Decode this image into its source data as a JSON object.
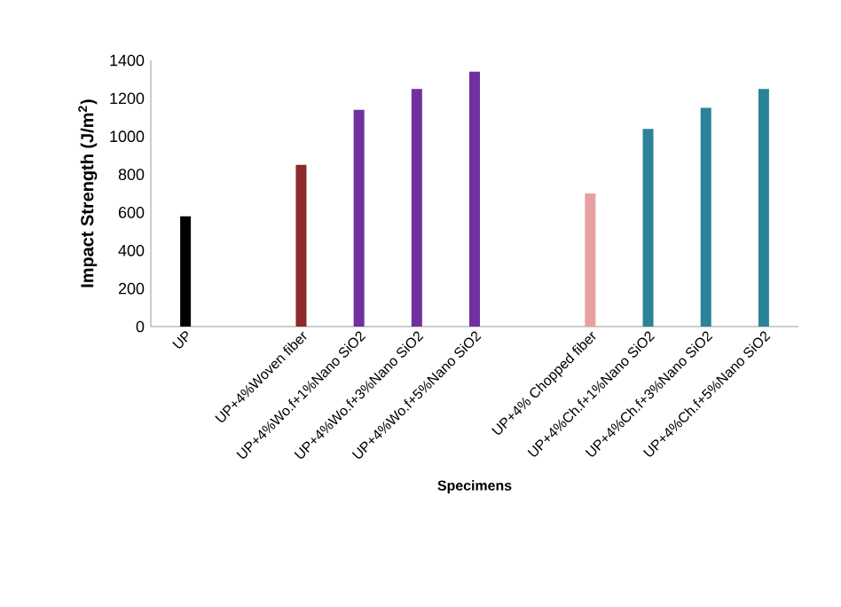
{
  "chart_data": {
    "type": "bar",
    "xlabel": "Specimens",
    "ylabel": "Impact Strength (J/m$^{2}$)",
    "categories": [
      "UP",
      null,
      "UP+4%Woven fiber",
      "UP+4%Wo.f+1%Nano SiO2",
      "UP+4%Wo.f+3%Nano SiO2",
      "UP+4%Wo.f+5%Nano SiO2",
      null,
      "UP+4% Chopped fiber",
      "UP+4%Ch.f+1%Nano SiO2",
      "UP+4%Ch.f+3%Nano SiO2",
      "UP+4%Ch.f+5%Nano SiO2"
    ],
    "values": [
      580,
      null,
      850,
      1140,
      1250,
      1340,
      null,
      700,
      1040,
      1150,
      1250
    ],
    "colors": [
      "#000000",
      "#ffffff",
      "#8b2b2b",
      "#7030a0",
      "#7030a0",
      "#7030a0",
      "#ffffff",
      "#e6a0a0",
      "#2b8299",
      "#2b8299",
      "#2b8299"
    ],
    "ylim": [
      0,
      1400
    ],
    "yticks": [
      0,
      200,
      400,
      600,
      800,
      1000,
      1200,
      1400
    ],
    "grid": false
  }
}
